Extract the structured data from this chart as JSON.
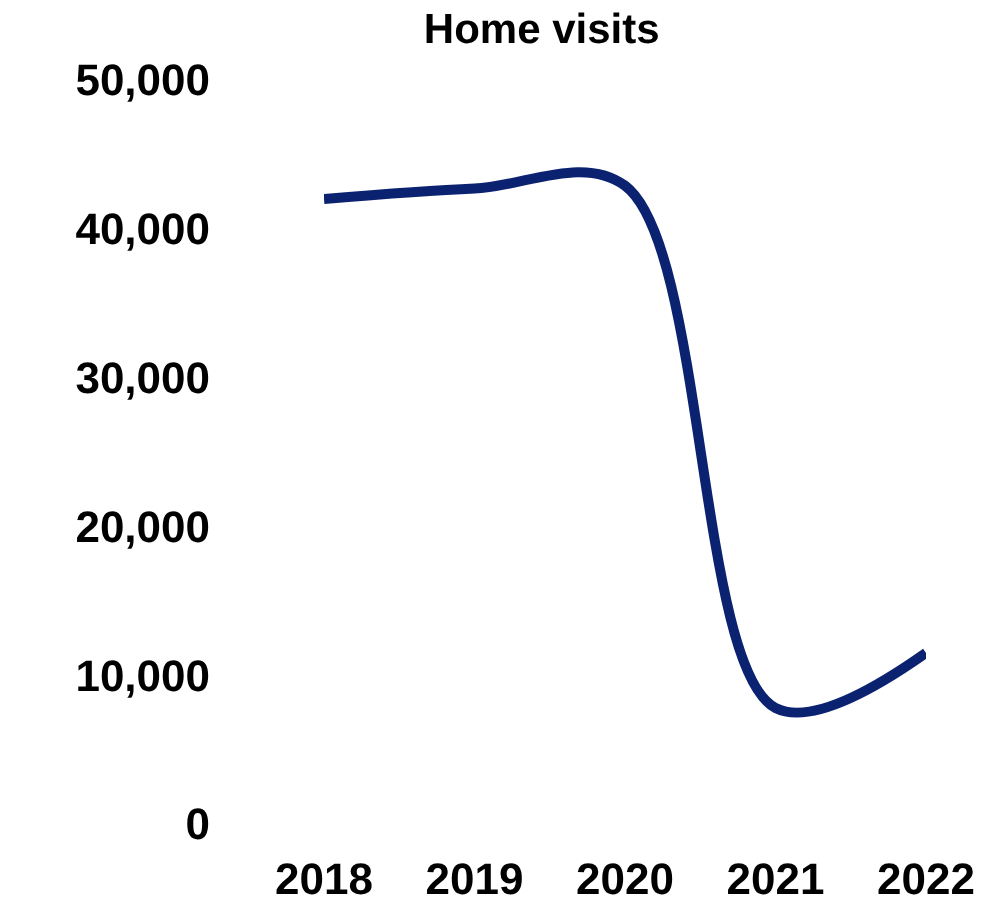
{
  "chart_data": {
    "type": "line",
    "title": "Home visits",
    "categories": [
      "2018",
      "2019",
      "2020",
      "2021",
      "2022"
    ],
    "series": [
      {
        "color": "#0b2270",
        "values": [
          42000,
          42700,
          42900,
          7800,
          11500
        ]
      }
    ],
    "ylim": [
      0,
      50000
    ],
    "yticks": [
      {
        "value": 0,
        "label": "0"
      },
      {
        "value": 10000,
        "label": "10,000"
      },
      {
        "value": 20000,
        "label": "20,000"
      },
      {
        "value": 30000,
        "label": "30,000"
      },
      {
        "value": 40000,
        "label": "40,000"
      },
      {
        "value": 50000,
        "label": "50,000"
      }
    ],
    "grid": false,
    "marker": "none",
    "line_style": "solid"
  }
}
